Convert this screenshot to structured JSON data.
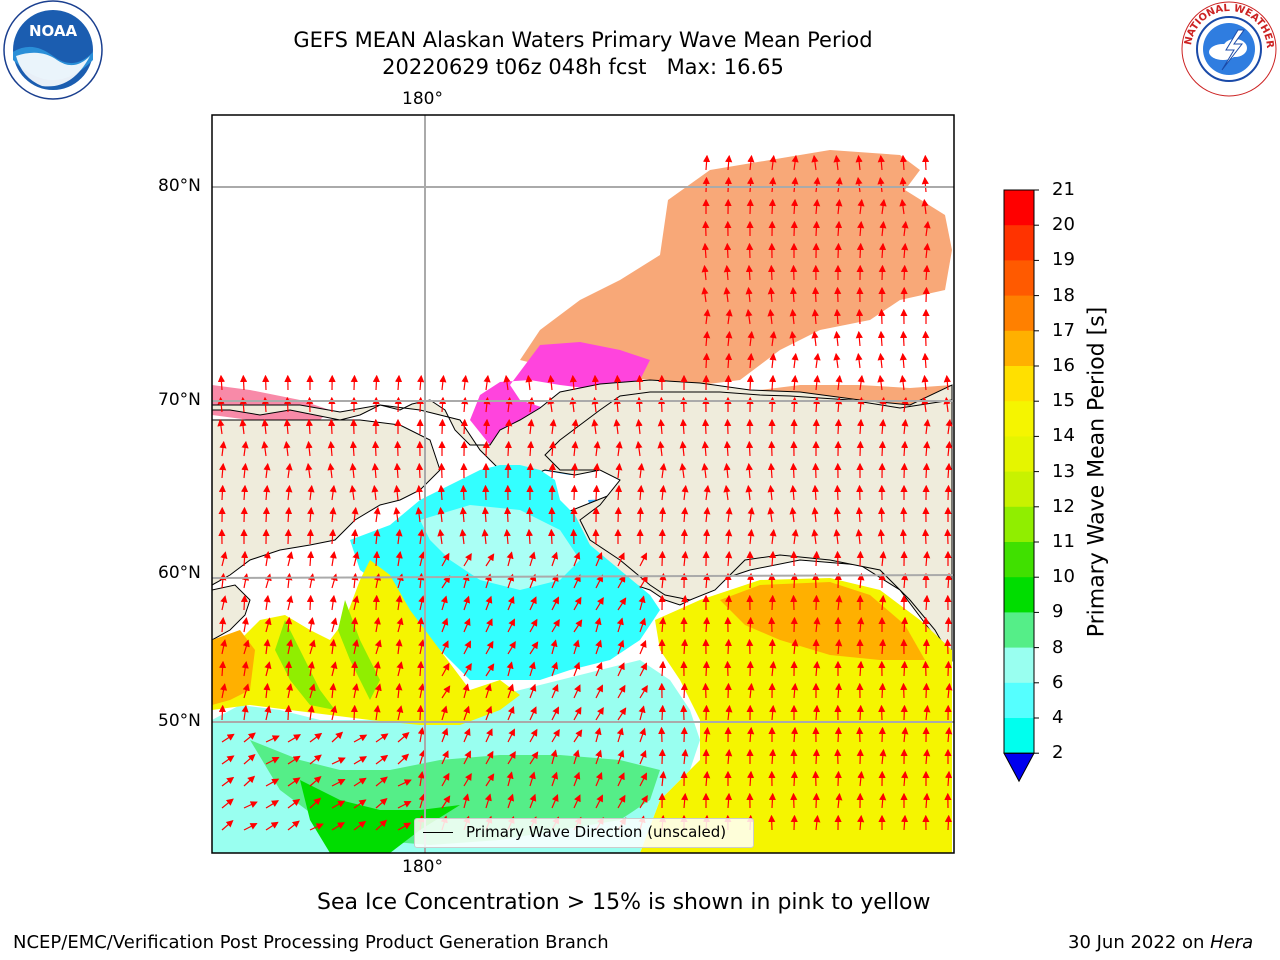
{
  "title": {
    "line1": "GEFS MEAN Alaskan Waters Primary Wave Mean Period",
    "line2": "20220629 t06z 048h fcst   Max: 16.65"
  },
  "axes": {
    "lon_top": "180°",
    "lon_bottom": "180°",
    "lat_labels": [
      "80°N",
      "70°N",
      "60°N",
      "50°N"
    ]
  },
  "legend": {
    "label": "Primary Wave Direction (unscaled)"
  },
  "colorbar": {
    "label": "Primary Wave Mean Period [s]",
    "ticks": [
      "21",
      "20",
      "19",
      "18",
      "17",
      "16",
      "15",
      "14",
      "13",
      "12",
      "11",
      "10",
      "9",
      "8",
      "6",
      "4",
      "2"
    ],
    "colors": [
      "#ff0000",
      "#ff3300",
      "#ff5a00",
      "#ff8000",
      "#ffb000",
      "#ffe000",
      "#f5f500",
      "#e5f500",
      "#c8f200",
      "#90ee00",
      "#40e000",
      "#00dd00",
      "#55ee88",
      "#99fff0",
      "#55ffff",
      "#00ffee",
      "#0077ff"
    ],
    "extend_color": "#0000ee"
  },
  "note": "Sea Ice Concentration > 15% is shown in pink to yellow",
  "footer": {
    "left": "NCEP/EMC/Verification Post Processing Product Generation Branch",
    "date": "30 Jun 2022 on",
    "machine": "Hera"
  },
  "logos": {
    "noaa_text": "NOAA",
    "nws_text": "NATIONAL WEATHER SERVICE"
  }
}
